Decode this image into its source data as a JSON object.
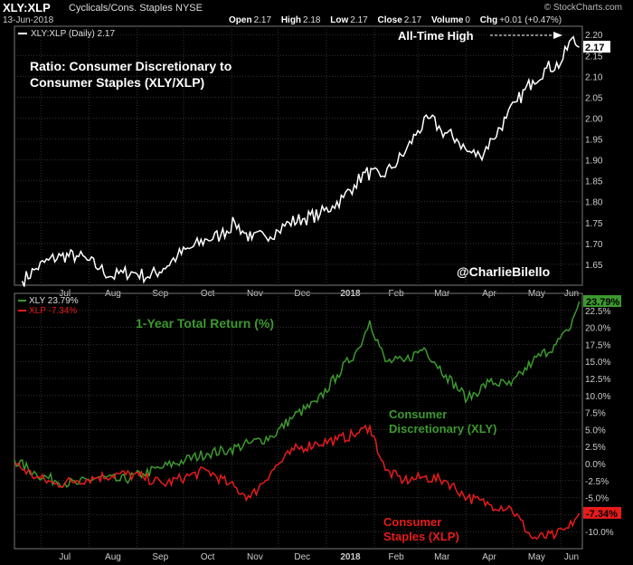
{
  "header": {
    "symbol": "XLY:XLP",
    "name": "Cyclicals/Cons. Staples",
    "exchange": "NYSE",
    "date": "13-Jun-2018",
    "open_label": "Open",
    "open": "2.17",
    "high_label": "High",
    "high": "2.18",
    "low_label": "Low",
    "low": "2.17",
    "close_label": "Close",
    "close": "2.17",
    "volume_label": "Volume",
    "volume": "0",
    "chg_label": "Chg",
    "chg": "+0.01 (+0.47%)",
    "brand": "© StockCharts.com"
  },
  "chart_data": [
    {
      "type": "line",
      "legend": "XLY:XLP (Daily) 2.17",
      "annotations": [
        "Ratio: Consumer Discretionary to",
        "Consumer Staples (XLY/XLP)",
        "All-Time High",
        "@CharlieBilello"
      ],
      "last_value_label": "2.17",
      "ylim": [
        1.6,
        2.2
      ],
      "yticks": [
        "1.65",
        "1.70",
        "1.75",
        "1.80",
        "1.85",
        "1.90",
        "1.95",
        "2.00",
        "2.05",
        "2.10",
        "2.15",
        "2.20"
      ],
      "x_labels": [
        "Jul",
        "Aug",
        "Sep",
        "Oct",
        "Nov",
        "Dec",
        "2018",
        "Feb",
        "Mar",
        "Apr",
        "May",
        "Jun"
      ],
      "grid": true,
      "series": [
        {
          "values_note": "daily ratio, Jun-2017 to 13-Jun-2018",
          "x": [
            "2017-06-19",
            "2017-06-28",
            "2017-07-06",
            "2017-07-14",
            "2017-07-24",
            "2017-07-31",
            "2017-08-08",
            "2017-08-16",
            "2017-08-23",
            "2017-08-31",
            "2017-09-08",
            "2017-09-18",
            "2017-09-27",
            "2017-10-06",
            "2017-10-16",
            "2017-10-25",
            "2017-11-03",
            "2017-11-08",
            "2017-11-14",
            "2017-11-22",
            "2017-12-01",
            "2017-12-08",
            "2017-12-18",
            "2017-12-28",
            "2018-01-05",
            "2018-01-12",
            "2018-01-19",
            "2018-01-26",
            "2018-02-05",
            "2018-02-12",
            "2018-02-21",
            "2018-03-01",
            "2018-03-09",
            "2018-03-16",
            "2018-03-26",
            "2018-04-02",
            "2018-04-10",
            "2018-04-18",
            "2018-04-27",
            "2018-05-04",
            "2018-05-14",
            "2018-05-23",
            "2018-06-01",
            "2018-06-08",
            "2018-06-13"
          ],
          "values": [
            1.61,
            1.64,
            1.66,
            1.67,
            1.67,
            1.66,
            1.64,
            1.62,
            1.63,
            1.63,
            1.62,
            1.64,
            1.67,
            1.69,
            1.71,
            1.72,
            1.75,
            1.73,
            1.71,
            1.72,
            1.73,
            1.75,
            1.76,
            1.77,
            1.79,
            1.81,
            1.84,
            1.87,
            1.86,
            1.88,
            1.92,
            1.97,
            2.0,
            1.97,
            1.95,
            1.92,
            1.91,
            1.95,
            2.0,
            2.04,
            2.09,
            2.12,
            2.13,
            2.19,
            2.17
          ]
        }
      ]
    },
    {
      "type": "line",
      "title": "1-Year Total Return (%)",
      "ylim": [
        -12.5,
        25
      ],
      "yticks": [
        "-10.0%",
        "-7.5%",
        "-5.0%",
        "-2.5%",
        "0.0%",
        "2.5%",
        "5.0%",
        "7.5%",
        "10.0%",
        "12.5%",
        "15.0%",
        "17.5%",
        "20.0%",
        "22.5%"
      ],
      "x_labels": [
        "Jul",
        "Aug",
        "Sep",
        "Oct",
        "Nov",
        "Dec",
        "2018",
        "Feb",
        "Mar",
        "Apr",
        "May",
        "Jun"
      ],
      "grid": true,
      "series": [
        {
          "name": "XLY",
          "legend": "XLY 23.79%",
          "label": "Consumer Discretionary (XLY)",
          "last_value_label": "23.79%",
          "color": "#3c9a2e",
          "x": [
            "2017-06-14",
            "2017-06-28",
            "2017-07-10",
            "2017-07-24",
            "2017-08-07",
            "2017-08-21",
            "2017-09-05",
            "2017-09-18",
            "2017-10-02",
            "2017-10-16",
            "2017-10-30",
            "2017-11-13",
            "2017-11-27",
            "2017-12-11",
            "2017-12-26",
            "2018-01-08",
            "2018-01-22",
            "2018-01-29",
            "2018-02-08",
            "2018-02-20",
            "2018-03-05",
            "2018-03-19",
            "2018-04-02",
            "2018-04-16",
            "2018-04-30",
            "2018-05-14",
            "2018-05-29",
            "2018-06-06",
            "2018-06-13"
          ],
          "values": [
            0.5,
            -1.5,
            -2.5,
            -3.0,
            -2.0,
            -2.5,
            -1.5,
            -0.5,
            0.5,
            1.5,
            2.0,
            3.0,
            4.0,
            7.0,
            9.0,
            13.0,
            17.0,
            21.0,
            15.0,
            15.0,
            17.0,
            13.0,
            9.5,
            12.0,
            11.5,
            15.0,
            17.5,
            19.5,
            23.8
          ]
        },
        {
          "name": "XLP",
          "legend": "XLP -7.34%",
          "label": "Consumer Staples (XLP)",
          "last_value_label": "-7.34%",
          "color": "#e81b1b",
          "x": [
            "2017-06-14",
            "2017-06-28",
            "2017-07-10",
            "2017-07-24",
            "2017-08-07",
            "2017-08-21",
            "2017-09-05",
            "2017-09-18",
            "2017-10-02",
            "2017-10-16",
            "2017-10-30",
            "2017-11-13",
            "2017-11-27",
            "2017-12-11",
            "2017-12-26",
            "2018-01-08",
            "2018-01-22",
            "2018-01-29",
            "2018-02-08",
            "2018-02-20",
            "2018-03-05",
            "2018-03-19",
            "2018-04-02",
            "2018-04-16",
            "2018-04-30",
            "2018-05-14",
            "2018-05-29",
            "2018-06-06",
            "2018-06-13"
          ],
          "values": [
            0.0,
            -2.0,
            -3.0,
            -2.5,
            -2.0,
            -1.5,
            -2.0,
            -3.0,
            -2.0,
            -1.0,
            -3.0,
            -5.0,
            -1.0,
            2.0,
            3.0,
            3.5,
            4.5,
            5.5,
            -1.0,
            -2.5,
            -2.0,
            -2.5,
            -5.0,
            -6.0,
            -6.5,
            -11.0,
            -10.5,
            -9.5,
            -7.3
          ]
        }
      ]
    }
  ]
}
